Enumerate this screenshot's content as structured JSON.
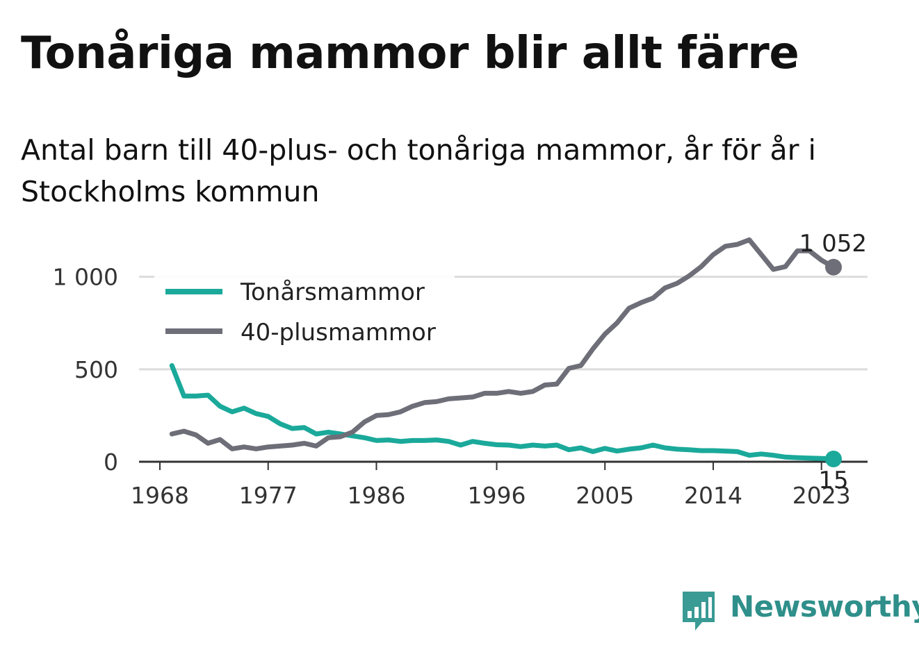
{
  "title": "Tonåriga mammor blir allt färre",
  "subtitle": "Antal barn till 40-plus- och tonåriga mammor, år för år i Stockholms kommun",
  "brand": "Newsworthy",
  "colors": {
    "teens": "#1aa99a",
    "forty_plus": "#6e6e78",
    "grid": "#dcdcdc",
    "axis": "#333333"
  },
  "chart_data": {
    "type": "line",
    "title": "Tonåriga mammor blir allt färre",
    "subtitle": "Antal barn till 40-plus- och tonåriga mammor, år för år i Stockholms kommun",
    "xlabel": "",
    "ylabel": "",
    "xlim": [
      1968,
      2024
    ],
    "ylim": [
      0,
      1100
    ],
    "x_ticks": [
      1968,
      1977,
      1986,
      1996,
      2005,
      2014,
      2023
    ],
    "y_ticks": [
      0,
      500,
      1000
    ],
    "y_tick_labels": [
      "0",
      "500",
      "1 000"
    ],
    "grid": "horizontal",
    "legend": "top-left",
    "x": [
      1969,
      1970,
      1971,
      1972,
      1973,
      1974,
      1975,
      1976,
      1977,
      1978,
      1979,
      1980,
      1981,
      1982,
      1983,
      1984,
      1985,
      1986,
      1987,
      1988,
      1989,
      1990,
      1991,
      1992,
      1993,
      1994,
      1995,
      1996,
      1997,
      1998,
      1999,
      2000,
      2001,
      2002,
      2003,
      2004,
      2005,
      2006,
      2007,
      2008,
      2009,
      2010,
      2011,
      2012,
      2013,
      2014,
      2015,
      2016,
      2017,
      2018,
      2019,
      2020,
      2021,
      2022,
      2023,
      2024
    ],
    "series": [
      {
        "name": "Tonårsmammor",
        "values": [
          520,
          355,
          355,
          360,
          300,
          270,
          290,
          260,
          245,
          205,
          180,
          185,
          150,
          160,
          150,
          140,
          130,
          115,
          118,
          110,
          115,
          115,
          118,
          110,
          90,
          110,
          100,
          92,
          90,
          82,
          90,
          85,
          90,
          65,
          75,
          55,
          72,
          58,
          68,
          75,
          90,
          75,
          68,
          65,
          60,
          60,
          58,
          55,
          35,
          42,
          35,
          25,
          22,
          20,
          18,
          15
        ],
        "end_label": "15"
      },
      {
        "name": "40-plusmammor",
        "values": [
          150,
          165,
          145,
          100,
          120,
          70,
          80,
          70,
          80,
          85,
          90,
          100,
          85,
          130,
          135,
          160,
          215,
          250,
          255,
          270,
          300,
          320,
          325,
          340,
          345,
          350,
          370,
          370,
          380,
          370,
          380,
          415,
          420,
          505,
          520,
          610,
          690,
          750,
          830,
          860,
          885,
          940,
          965,
          1005,
          1055,
          1120,
          1165,
          1175,
          1200,
          1120,
          1040,
          1055,
          1140,
          1140,
          1090,
          1052
        ],
        "end_label": "1 052"
      }
    ]
  }
}
